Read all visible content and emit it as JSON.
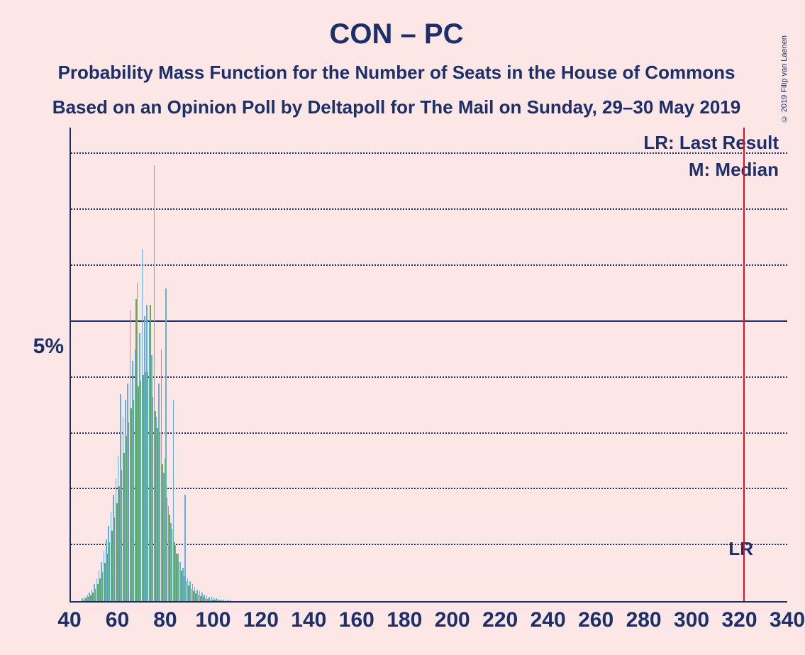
{
  "copyright": "© 2019 Filip van Laenen",
  "title": "CON – PC",
  "subtitle1": "Probability Mass Function for the Number of Seats in the House of Commons",
  "subtitle2": "Based on an Opinion Poll by Deltapoll for The Mail on Sunday, 29–30 May 2019",
  "chart": {
    "type": "bar-pmf",
    "background_color": "#fce6e6",
    "text_color": "#1b2f6b",
    "bar_color_primary": "#5fb0e0",
    "bar_color_secondary": "#6aa84f",
    "lr_line_color": "#e01020",
    "x_axis": {
      "min": 40,
      "max": 340,
      "tick_step": 20,
      "label_fontsize": 30
    },
    "y_axis": {
      "min": 0,
      "max": 8.5,
      "major_tick": 5,
      "minor_tick": 1,
      "label": "5%",
      "label_fontsize": 30
    },
    "lr_position": 321,
    "legend": {
      "lr": "LR: Last Result",
      "m": "M: Median",
      "lr_short": "LR"
    },
    "x_ticks": [
      40,
      60,
      80,
      100,
      120,
      140,
      160,
      180,
      200,
      220,
      240,
      260,
      280,
      300,
      320,
      340
    ],
    "series_primary": [
      {
        "x": 45,
        "y": 0.05
      },
      {
        "x": 46,
        "y": 0.08
      },
      {
        "x": 47,
        "y": 0.1
      },
      {
        "x": 48,
        "y": 0.15
      },
      {
        "x": 49,
        "y": 0.2
      },
      {
        "x": 50,
        "y": 0.3
      },
      {
        "x": 51,
        "y": 0.4
      },
      {
        "x": 52,
        "y": 0.55
      },
      {
        "x": 53,
        "y": 0.7
      },
      {
        "x": 54,
        "y": 0.9
      },
      {
        "x": 55,
        "y": 1.1
      },
      {
        "x": 56,
        "y": 1.35
      },
      {
        "x": 57,
        "y": 1.6
      },
      {
        "x": 58,
        "y": 1.9
      },
      {
        "x": 59,
        "y": 2.2
      },
      {
        "x": 60,
        "y": 2.6
      },
      {
        "x": 61,
        "y": 3.7
      },
      {
        "x": 62,
        "y": 3.3
      },
      {
        "x": 63,
        "y": 3.6
      },
      {
        "x": 64,
        "y": 3.9
      },
      {
        "x": 65,
        "y": 5.2
      },
      {
        "x": 66,
        "y": 4.3
      },
      {
        "x": 67,
        "y": 4.5
      },
      {
        "x": 68,
        "y": 5.7
      },
      {
        "x": 69,
        "y": 4.8
      },
      {
        "x": 70,
        "y": 6.3
      },
      {
        "x": 71,
        "y": 5.1
      },
      {
        "x": 72,
        "y": 5.3
      },
      {
        "x": 73,
        "y": 5.0
      },
      {
        "x": 74,
        "y": 4.4
      },
      {
        "x": 75,
        "y": 7.8
      },
      {
        "x": 76,
        "y": 3.3
      },
      {
        "x": 77,
        "y": 3.9
      },
      {
        "x": 78,
        "y": 4.5
      },
      {
        "x": 79,
        "y": 2.3
      },
      {
        "x": 80,
        "y": 5.6
      },
      {
        "x": 81,
        "y": 1.7
      },
      {
        "x": 82,
        "y": 1.4
      },
      {
        "x": 83,
        "y": 3.6
      },
      {
        "x": 84,
        "y": 1.0
      },
      {
        "x": 85,
        "y": 0.85
      },
      {
        "x": 86,
        "y": 0.7
      },
      {
        "x": 87,
        "y": 0.6
      },
      {
        "x": 88,
        "y": 1.9
      },
      {
        "x": 89,
        "y": 0.4
      },
      {
        "x": 90,
        "y": 0.35
      },
      {
        "x": 91,
        "y": 0.3
      },
      {
        "x": 92,
        "y": 0.25
      },
      {
        "x": 93,
        "y": 0.2
      },
      {
        "x": 94,
        "y": 0.18
      },
      {
        "x": 95,
        "y": 0.15
      },
      {
        "x": 96,
        "y": 0.12
      },
      {
        "x": 97,
        "y": 0.1
      },
      {
        "x": 98,
        "y": 0.08
      },
      {
        "x": 99,
        "y": 0.07
      },
      {
        "x": 100,
        "y": 0.06
      },
      {
        "x": 101,
        "y": 0.05
      },
      {
        "x": 102,
        "y": 0.04
      },
      {
        "x": 103,
        "y": 0.03
      },
      {
        "x": 104,
        "y": 0.03
      },
      {
        "x": 105,
        "y": 0.02
      },
      {
        "x": 106,
        "y": 0.02
      },
      {
        "x": 107,
        "y": 0.01
      }
    ],
    "series_secondary": [
      {
        "x": 45,
        "y": 0.03
      },
      {
        "x": 46,
        "y": 0.05
      },
      {
        "x": 47,
        "y": 0.07
      },
      {
        "x": 48,
        "y": 0.1
      },
      {
        "x": 49,
        "y": 0.15
      },
      {
        "x": 50,
        "y": 0.22
      },
      {
        "x": 51,
        "y": 0.3
      },
      {
        "x": 52,
        "y": 0.4
      },
      {
        "x": 53,
        "y": 0.52
      },
      {
        "x": 54,
        "y": 0.68
      },
      {
        "x": 55,
        "y": 0.85
      },
      {
        "x": 56,
        "y": 1.05
      },
      {
        "x": 57,
        "y": 1.25
      },
      {
        "x": 58,
        "y": 1.5
      },
      {
        "x": 59,
        "y": 1.75
      },
      {
        "x": 60,
        "y": 2.05
      },
      {
        "x": 61,
        "y": 2.35
      },
      {
        "x": 62,
        "y": 2.65
      },
      {
        "x": 63,
        "y": 2.95
      },
      {
        "x": 64,
        "y": 3.2
      },
      {
        "x": 65,
        "y": 3.45
      },
      {
        "x": 66,
        "y": 3.6
      },
      {
        "x": 67,
        "y": 5.4
      },
      {
        "x": 68,
        "y": 3.85
      },
      {
        "x": 69,
        "y": 3.95
      },
      {
        "x": 70,
        "y": 4.05
      },
      {
        "x": 71,
        "y": 4.1
      },
      {
        "x": 72,
        "y": 4.1
      },
      {
        "x": 73,
        "y": 5.3
      },
      {
        "x": 74,
        "y": 3.65
      },
      {
        "x": 75,
        "y": 3.4
      },
      {
        "x": 76,
        "y": 3.1
      },
      {
        "x": 77,
        "y": 3.0
      },
      {
        "x": 78,
        "y": 2.45
      },
      {
        "x": 79,
        "y": 2.55
      },
      {
        "x": 80,
        "y": 1.85
      },
      {
        "x": 81,
        "y": 1.55
      },
      {
        "x": 82,
        "y": 1.3
      },
      {
        "x": 83,
        "y": 1.05
      },
      {
        "x": 84,
        "y": 0.85
      },
      {
        "x": 85,
        "y": 0.7
      },
      {
        "x": 86,
        "y": 0.55
      },
      {
        "x": 87,
        "y": 0.45
      },
      {
        "x": 88,
        "y": 0.35
      },
      {
        "x": 89,
        "y": 0.28
      },
      {
        "x": 90,
        "y": 0.22
      },
      {
        "x": 91,
        "y": 0.18
      },
      {
        "x": 92,
        "y": 0.14
      },
      {
        "x": 93,
        "y": 0.11
      },
      {
        "x": 94,
        "y": 0.09
      },
      {
        "x": 95,
        "y": 0.07
      },
      {
        "x": 96,
        "y": 0.05
      },
      {
        "x": 97,
        "y": 0.04
      },
      {
        "x": 98,
        "y": 0.03
      },
      {
        "x": 99,
        "y": 0.03
      },
      {
        "x": 100,
        "y": 0.02
      },
      {
        "x": 101,
        "y": 0.02
      },
      {
        "x": 102,
        "y": 0.01
      }
    ]
  }
}
